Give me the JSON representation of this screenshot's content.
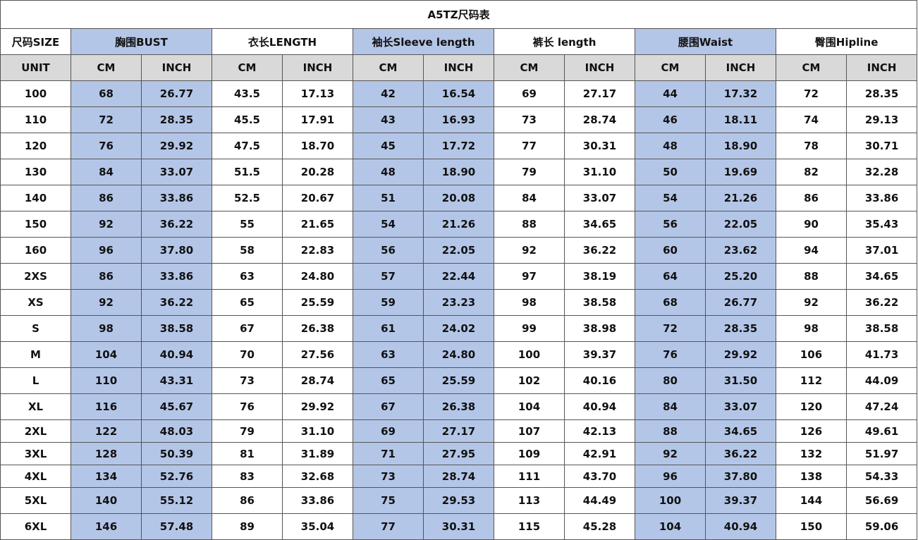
{
  "title": "A5TZ尺码表",
  "table": {
    "header": [
      "尺码SIZE",
      "胸围BUST",
      "衣长LENGTH",
      "袖长Sleeve length",
      "裤长 length",
      "腰围Waist",
      "臀围Hipline"
    ],
    "units": [
      "UNIT",
      "CM",
      "INCH",
      "CM",
      "INCH",
      "CM",
      "INCH",
      "CM",
      "INCH",
      "CM",
      "INCH",
      "CM",
      "INCH"
    ],
    "rows": [
      [
        "100",
        "68",
        "26.77",
        "43.5",
        "17.13",
        "42",
        "16.54",
        "69",
        "27.17",
        "44",
        "17.32",
        "72",
        "28.35"
      ],
      [
        "110",
        "72",
        "28.35",
        "45.5",
        "17.91",
        "43",
        "16.93",
        "73",
        "28.74",
        "46",
        "18.11",
        "74",
        "29.13"
      ],
      [
        "120",
        "76",
        "29.92",
        "47.5",
        "18.70",
        "45",
        "17.72",
        "77",
        "30.31",
        "48",
        "18.90",
        "78",
        "30.71"
      ],
      [
        "130",
        "84",
        "33.07",
        "51.5",
        "20.28",
        "48",
        "18.90",
        "79",
        "31.10",
        "50",
        "19.69",
        "82",
        "32.28"
      ],
      [
        "140",
        "86",
        "33.86",
        "52.5",
        "20.67",
        "51",
        "20.08",
        "84",
        "33.07",
        "54",
        "21.26",
        "86",
        "33.86"
      ],
      [
        "150",
        "92",
        "36.22",
        "55",
        "21.65",
        "54",
        "21.26",
        "88",
        "34.65",
        "56",
        "22.05",
        "90",
        "35.43"
      ],
      [
        "160",
        "96",
        "37.80",
        "58",
        "22.83",
        "56",
        "22.05",
        "92",
        "36.22",
        "60",
        "23.62",
        "94",
        "37.01"
      ],
      [
        "2XS",
        "86",
        "33.86",
        "63",
        "24.80",
        "57",
        "22.44",
        "97",
        "38.19",
        "64",
        "25.20",
        "88",
        "34.65"
      ],
      [
        "XS",
        "92",
        "36.22",
        "65",
        "25.59",
        "59",
        "23.23",
        "98",
        "38.58",
        "68",
        "26.77",
        "92",
        "36.22"
      ],
      [
        "S",
        "98",
        "38.58",
        "67",
        "26.38",
        "61",
        "24.02",
        "99",
        "38.98",
        "72",
        "28.35",
        "98",
        "38.58"
      ],
      [
        "M",
        "104",
        "40.94",
        "70",
        "27.56",
        "63",
        "24.80",
        "100",
        "39.37",
        "76",
        "29.92",
        "106",
        "41.73"
      ],
      [
        "L",
        "110",
        "43.31",
        "73",
        "28.74",
        "65",
        "25.59",
        "102",
        "40.16",
        "80",
        "31.50",
        "112",
        "44.09"
      ],
      [
        "XL",
        "116",
        "45.67",
        "76",
        "29.92",
        "67",
        "26.38",
        "104",
        "40.94",
        "84",
        "33.07",
        "120",
        "47.24"
      ],
      [
        "2XL",
        "122",
        "48.03",
        "79",
        "31.10",
        "69",
        "27.17",
        "107",
        "42.13",
        "88",
        "34.65",
        "126",
        "49.61"
      ],
      [
        "3XL",
        "128",
        "50.39",
        "81",
        "31.89",
        "71",
        "27.95",
        "109",
        "42.91",
        "92",
        "36.22",
        "132",
        "51.97"
      ],
      [
        "4XL",
        "134",
        "52.76",
        "83",
        "32.68",
        "73",
        "28.74",
        "111",
        "43.70",
        "96",
        "37.80",
        "138",
        "54.33"
      ],
      [
        "5XL",
        "140",
        "55.12",
        "86",
        "33.86",
        "75",
        "29.53",
        "113",
        "44.49",
        "100",
        "39.37",
        "144",
        "56.69"
      ],
      [
        "6XL",
        "146",
        "57.48",
        "89",
        "35.04",
        "77",
        "30.31",
        "115",
        "45.28",
        "104",
        "40.94",
        "150",
        "59.06"
      ]
    ]
  }
}
